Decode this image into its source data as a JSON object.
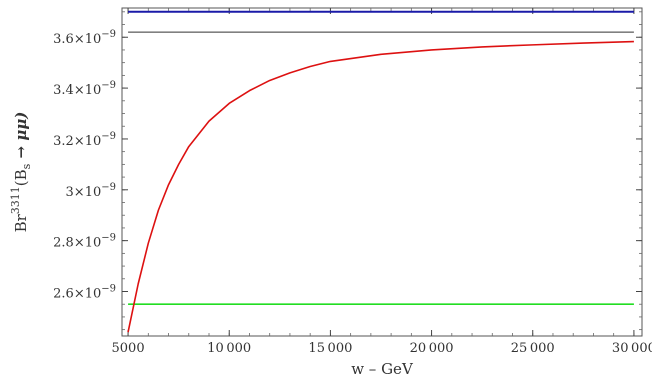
{
  "chart_data": {
    "type": "line",
    "xlabel": "w – GeV",
    "ylabel": {
      "prefix": "Br",
      "superscript": "3311",
      "args": "(B",
      "subscript": "s",
      "arrow": " → ",
      "particles": "μμ)"
    },
    "xlim": [
      4700,
      30400
    ],
    "ylim": [
      2.425e-09,
      3.715e-09
    ],
    "x_ticks": [
      {
        "value": 5000,
        "label": "5000"
      },
      {
        "value": 10000,
        "label": "10 000"
      },
      {
        "value": 15000,
        "label": "15 000"
      },
      {
        "value": 20000,
        "label": "20 000"
      },
      {
        "value": 25000,
        "label": "25 000"
      },
      {
        "value": 30000,
        "label": "30 000"
      }
    ],
    "y_ticks": [
      {
        "value": 2.6e-09,
        "mantissa": "2.6",
        "times": "×10",
        "exp": "−9"
      },
      {
        "value": 2.8e-09,
        "mantissa": "2.8",
        "times": "×10",
        "exp": "−9"
      },
      {
        "value": 3e-09,
        "mantissa": "3",
        "times": "×10",
        "exp": "−9"
      },
      {
        "value": 3.2e-09,
        "mantissa": "3.2",
        "times": "×10",
        "exp": "−9"
      },
      {
        "value": 3.4e-09,
        "mantissa": "3.4",
        "times": "×10",
        "exp": "−9"
      },
      {
        "value": 3.6e-09,
        "mantissa": "3.6",
        "times": "×10",
        "exp": "−9"
      }
    ],
    "minor_x_step": 1000,
    "minor_y_step": 5e-11,
    "grid": false,
    "series": [
      {
        "color": "#1a1aa8",
        "x": [
          5000,
          30000
        ],
        "y": [
          3.7e-09,
          3.7e-09
        ]
      },
      {
        "color": "#808080",
        "x": [
          5000,
          30000
        ],
        "y": [
          3.62e-09,
          3.62e-09
        ]
      },
      {
        "color": "#22dd22",
        "x": [
          5000,
          30000
        ],
        "y": [
          2.55e-09,
          2.55e-09
        ]
      },
      {
        "color": "#dd1111",
        "x": [
          5000,
          5500,
          6000,
          6500,
          7000,
          7500,
          8000,
          9000,
          10000,
          11000,
          12000,
          13000,
          14000,
          15000,
          17500,
          20000,
          22500,
          25000,
          27500,
          30000
        ],
        "y": [
          2.44e-09,
          2.63e-09,
          2.79e-09,
          2.92e-09,
          3.02e-09,
          3.1e-09,
          3.17e-09,
          3.27e-09,
          3.34e-09,
          3.39e-09,
          3.43e-09,
          3.46e-09,
          3.485e-09,
          3.505e-09,
          3.533e-09,
          3.55e-09,
          3.562e-09,
          3.57e-09,
          3.577e-09,
          3.583e-09
        ]
      }
    ]
  }
}
